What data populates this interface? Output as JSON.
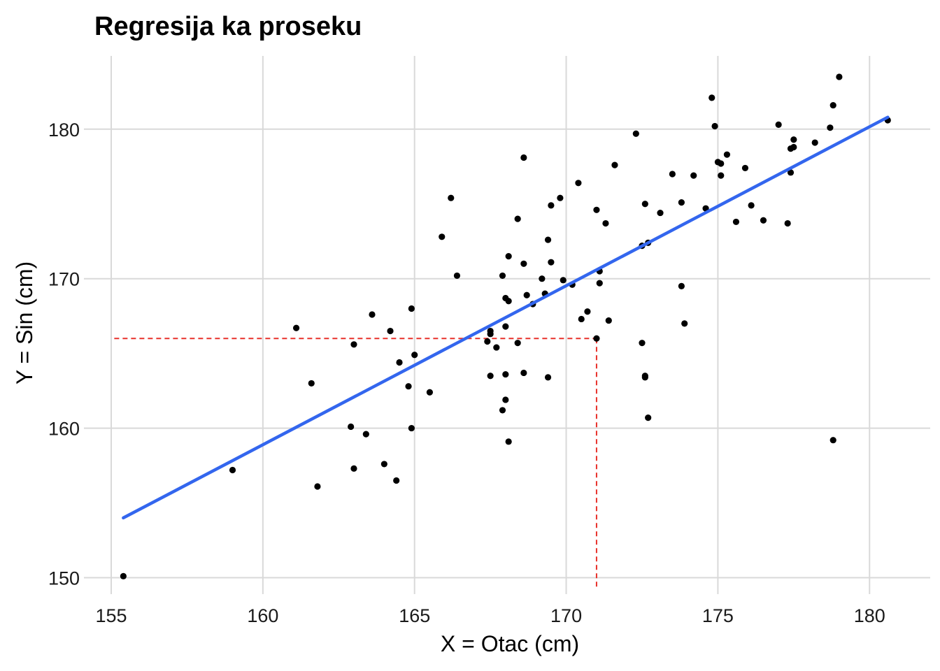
{
  "chart_data": {
    "type": "scatter",
    "title": "Regresija ka proseku",
    "xlabel": "X = Otac (cm)",
    "ylabel": "Y = Sin (cm)",
    "xlim": [
      154.1,
      182.0
    ],
    "ylim": [
      148.9,
      184.9
    ],
    "xticks": [
      155,
      160,
      165,
      170,
      175,
      180
    ],
    "yticks": [
      150,
      160,
      170,
      180
    ],
    "xtick_labels": [
      "155",
      "160",
      "165",
      "170",
      "175",
      "180"
    ],
    "ytick_labels": [
      "150",
      "160",
      "170",
      "180"
    ],
    "grid": true,
    "colors": {
      "points": "#000000",
      "regression": "#3366ee",
      "reference": "#e8302a",
      "grid": "#d9d9d9"
    },
    "regression_line": {
      "x": [
        155.4,
        180.6
      ],
      "y": [
        154.0,
        180.8
      ]
    },
    "reference_point": {
      "x": 171.0,
      "y": 166.0
    },
    "points": [
      {
        "x": 155.4,
        "y": 150.1
      },
      {
        "x": 159.0,
        "y": 157.2
      },
      {
        "x": 161.1,
        "y": 166.7
      },
      {
        "x": 161.6,
        "y": 163.0
      },
      {
        "x": 161.8,
        "y": 156.1
      },
      {
        "x": 162.9,
        "y": 160.1
      },
      {
        "x": 163.0,
        "y": 157.3
      },
      {
        "x": 163.0,
        "y": 165.6
      },
      {
        "x": 163.4,
        "y": 159.6
      },
      {
        "x": 163.6,
        "y": 167.6
      },
      {
        "x": 164.0,
        "y": 157.6
      },
      {
        "x": 164.2,
        "y": 166.5
      },
      {
        "x": 164.4,
        "y": 156.5
      },
      {
        "x": 164.5,
        "y": 164.4
      },
      {
        "x": 164.8,
        "y": 162.8
      },
      {
        "x": 164.9,
        "y": 168.0
      },
      {
        "x": 164.9,
        "y": 160.0
      },
      {
        "x": 165.0,
        "y": 164.9
      },
      {
        "x": 165.5,
        "y": 162.4
      },
      {
        "x": 165.9,
        "y": 172.8
      },
      {
        "x": 166.2,
        "y": 175.4
      },
      {
        "x": 166.4,
        "y": 170.2
      },
      {
        "x": 167.4,
        "y": 165.8
      },
      {
        "x": 167.5,
        "y": 166.3
      },
      {
        "x": 167.5,
        "y": 166.5
      },
      {
        "x": 167.5,
        "y": 163.5
      },
      {
        "x": 167.7,
        "y": 165.4
      },
      {
        "x": 167.9,
        "y": 161.2
      },
      {
        "x": 167.9,
        "y": 170.2
      },
      {
        "x": 168.0,
        "y": 168.7
      },
      {
        "x": 168.0,
        "y": 161.9
      },
      {
        "x": 168.0,
        "y": 166.8
      },
      {
        "x": 168.0,
        "y": 163.6
      },
      {
        "x": 168.1,
        "y": 168.5
      },
      {
        "x": 168.1,
        "y": 171.5
      },
      {
        "x": 168.1,
        "y": 159.1
      },
      {
        "x": 168.4,
        "y": 165.7
      },
      {
        "x": 168.4,
        "y": 174.0
      },
      {
        "x": 168.6,
        "y": 163.7
      },
      {
        "x": 168.6,
        "y": 178.1
      },
      {
        "x": 168.6,
        "y": 171.0
      },
      {
        "x": 168.7,
        "y": 168.9
      },
      {
        "x": 168.9,
        "y": 168.3
      },
      {
        "x": 169.2,
        "y": 170.0
      },
      {
        "x": 169.3,
        "y": 169.0
      },
      {
        "x": 169.4,
        "y": 163.4
      },
      {
        "x": 169.4,
        "y": 172.6
      },
      {
        "x": 169.5,
        "y": 174.9
      },
      {
        "x": 169.5,
        "y": 171.1
      },
      {
        "x": 169.8,
        "y": 175.4
      },
      {
        "x": 169.9,
        "y": 169.9
      },
      {
        "x": 170.2,
        "y": 169.6
      },
      {
        "x": 170.4,
        "y": 176.4
      },
      {
        "x": 170.5,
        "y": 167.3
      },
      {
        "x": 170.7,
        "y": 167.8
      },
      {
        "x": 171.0,
        "y": 166.0
      },
      {
        "x": 171.0,
        "y": 174.6
      },
      {
        "x": 171.1,
        "y": 169.7
      },
      {
        "x": 171.1,
        "y": 170.5
      },
      {
        "x": 171.3,
        "y": 173.7
      },
      {
        "x": 171.4,
        "y": 167.2
      },
      {
        "x": 171.6,
        "y": 177.6
      },
      {
        "x": 172.3,
        "y": 179.7
      },
      {
        "x": 172.5,
        "y": 165.7
      },
      {
        "x": 172.5,
        "y": 172.2
      },
      {
        "x": 172.6,
        "y": 163.5
      },
      {
        "x": 172.6,
        "y": 163.4
      },
      {
        "x": 172.6,
        "y": 175.0
      },
      {
        "x": 172.7,
        "y": 160.7
      },
      {
        "x": 172.7,
        "y": 172.4
      },
      {
        "x": 173.1,
        "y": 174.4
      },
      {
        "x": 173.5,
        "y": 177.0
      },
      {
        "x": 173.8,
        "y": 169.5
      },
      {
        "x": 173.8,
        "y": 175.1
      },
      {
        "x": 173.9,
        "y": 167.0
      },
      {
        "x": 174.2,
        "y": 176.9
      },
      {
        "x": 174.6,
        "y": 174.7
      },
      {
        "x": 174.8,
        "y": 182.1
      },
      {
        "x": 174.9,
        "y": 180.2
      },
      {
        "x": 175.0,
        "y": 177.8
      },
      {
        "x": 175.1,
        "y": 176.9
      },
      {
        "x": 175.1,
        "y": 177.7
      },
      {
        "x": 175.3,
        "y": 178.3
      },
      {
        "x": 175.6,
        "y": 173.8
      },
      {
        "x": 175.9,
        "y": 177.4
      },
      {
        "x": 176.1,
        "y": 174.9
      },
      {
        "x": 176.5,
        "y": 173.9
      },
      {
        "x": 177.0,
        "y": 180.3
      },
      {
        "x": 177.3,
        "y": 173.7
      },
      {
        "x": 177.4,
        "y": 178.7
      },
      {
        "x": 177.4,
        "y": 177.1
      },
      {
        "x": 177.5,
        "y": 179.3
      },
      {
        "x": 177.5,
        "y": 178.8
      },
      {
        "x": 178.2,
        "y": 179.1
      },
      {
        "x": 178.7,
        "y": 180.1
      },
      {
        "x": 178.8,
        "y": 181.6
      },
      {
        "x": 178.8,
        "y": 159.2
      },
      {
        "x": 179.0,
        "y": 183.5
      },
      {
        "x": 180.6,
        "y": 180.6
      }
    ]
  }
}
